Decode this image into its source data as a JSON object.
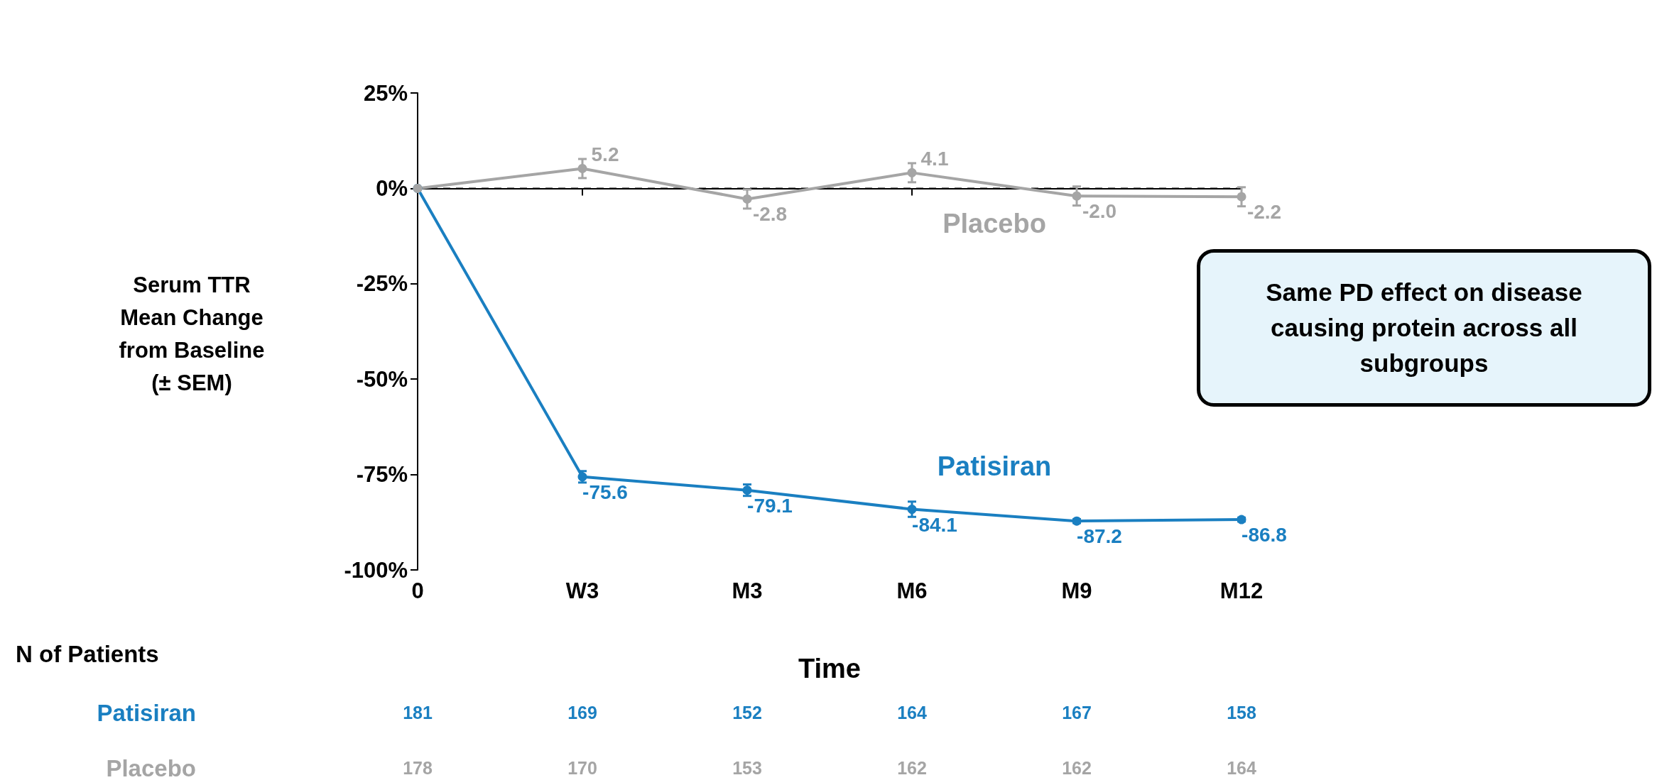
{
  "chart_data": {
    "type": "line",
    "xlabel": "Time",
    "ylabel": "Serum TTR\nMean Change\nfrom Baseline\n(± SEM)",
    "categories": [
      "0",
      "W3",
      "M3",
      "M6",
      "M9",
      "M12"
    ],
    "ylim": [
      -100,
      25
    ],
    "yticks": [
      {
        "value": -100,
        "label": "-100%"
      },
      {
        "value": -75,
        "label": "-75%"
      },
      {
        "value": -50,
        "label": "-50%"
      },
      {
        "value": -25,
        "label": "-25%"
      },
      {
        "value": 0,
        "label": "0%"
      },
      {
        "value": 25,
        "label": "25%"
      }
    ],
    "series": [
      {
        "name": "Patisiran",
        "color": "#1a7fc1",
        "values": [
          0,
          -75.6,
          -79.1,
          -84.1,
          -87.2,
          -86.8
        ],
        "errors": [
          null,
          1.5,
          1.5,
          2,
          0.5,
          0.5
        ],
        "value_labels": [
          null,
          "-75.6",
          "-79.1",
          "-84.1",
          "-87.2",
          "-86.8"
        ]
      },
      {
        "name": "Placebo",
        "color": "#a5a5a5",
        "values": [
          0,
          5.2,
          -2.8,
          4.1,
          -2.0,
          -2.2
        ],
        "errors": [
          null,
          2.5,
          2.5,
          2.5,
          2.5,
          2.5
        ],
        "value_labels": [
          null,
          "5.2",
          "-2.8",
          "4.1",
          "-2.0",
          "-2.2"
        ]
      }
    ],
    "ref_lines": [
      {
        "axis": "y",
        "value": 0,
        "color": "#000000",
        "line_style": "dashed"
      }
    ],
    "marker": "circle",
    "line_style": "solid",
    "legend": false,
    "grid": false,
    "annotations": [
      "Same PD effect on disease causing protein across all subgroups",
      "N of Patients",
      "181",
      "169",
      "152",
      "164",
      "167",
      "158",
      "178",
      "170",
      "153",
      "162",
      "162",
      "164"
    ]
  }
}
